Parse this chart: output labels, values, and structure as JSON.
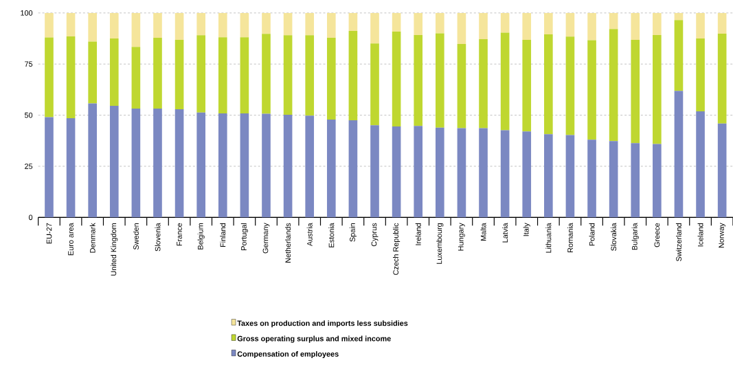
{
  "chart_data": {
    "type": "bar",
    "stacked": true,
    "categories": [
      "EU-27",
      "Euro area",
      "Denmark",
      "United Kingdom",
      "Sweden",
      "Slovenia",
      "France",
      "Belgium",
      "Finland",
      "Portugal",
      "Germany",
      "Netherlands",
      "Austria",
      "Estonia",
      "Spain",
      "Cyprus",
      "Czech Republic",
      "Ireland",
      "Luxembourg",
      "Hungary",
      "Malta",
      "Latvia",
      "Italy",
      "Lithuania",
      "Romania",
      "Poland",
      "Slovakia",
      "Bulgaria",
      "Greece",
      "Switzerland",
      "Iceland",
      "Norway"
    ],
    "series": [
      {
        "name": "Compensation of employees",
        "color": "#7b88c2",
        "values": [
          49.0,
          48.5,
          55.7,
          54.6,
          53.2,
          53.2,
          52.9,
          51.3,
          50.9,
          50.9,
          50.7,
          50.2,
          49.8,
          47.8,
          47.5,
          45.1,
          44.5,
          44.7,
          43.9,
          43.6,
          43.6,
          42.6,
          42.0,
          40.7,
          40.3,
          38.0,
          37.3,
          36.3,
          35.9,
          61.9,
          51.9,
          45.9
        ]
      },
      {
        "name": "Gross operating surplus and mixed income",
        "color": "#bfd730",
        "values": [
          39.0,
          40.0,
          30.3,
          32.9,
          30.2,
          34.6,
          33.9,
          37.8,
          37.2,
          37.2,
          39.1,
          38.9,
          39.3,
          40.0,
          43.7,
          40.0,
          46.4,
          44.5,
          46.1,
          41.2,
          43.6,
          47.8,
          44.8,
          48.8,
          48.1,
          48.7,
          54.8,
          50.5,
          53.3,
          34.6,
          35.6,
          44.0
        ]
      },
      {
        "name": "Taxes on production and imports less subsidies",
        "color": "#f5e59b",
        "values": [
          12.0,
          11.5,
          14.0,
          12.5,
          16.6,
          12.2,
          13.2,
          10.9,
          11.9,
          11.9,
          10.2,
          10.9,
          10.9,
          12.2,
          8.8,
          14.9,
          9.1,
          10.8,
          10.0,
          15.2,
          12.8,
          9.6,
          13.2,
          10.5,
          11.6,
          13.3,
          7.9,
          13.2,
          10.8,
          3.5,
          12.5,
          10.1
        ]
      }
    ],
    "ylim": [
      0,
      100
    ],
    "yticks": [
      0,
      25,
      50,
      75,
      100
    ],
    "grid": "y",
    "legend": "bottom"
  }
}
